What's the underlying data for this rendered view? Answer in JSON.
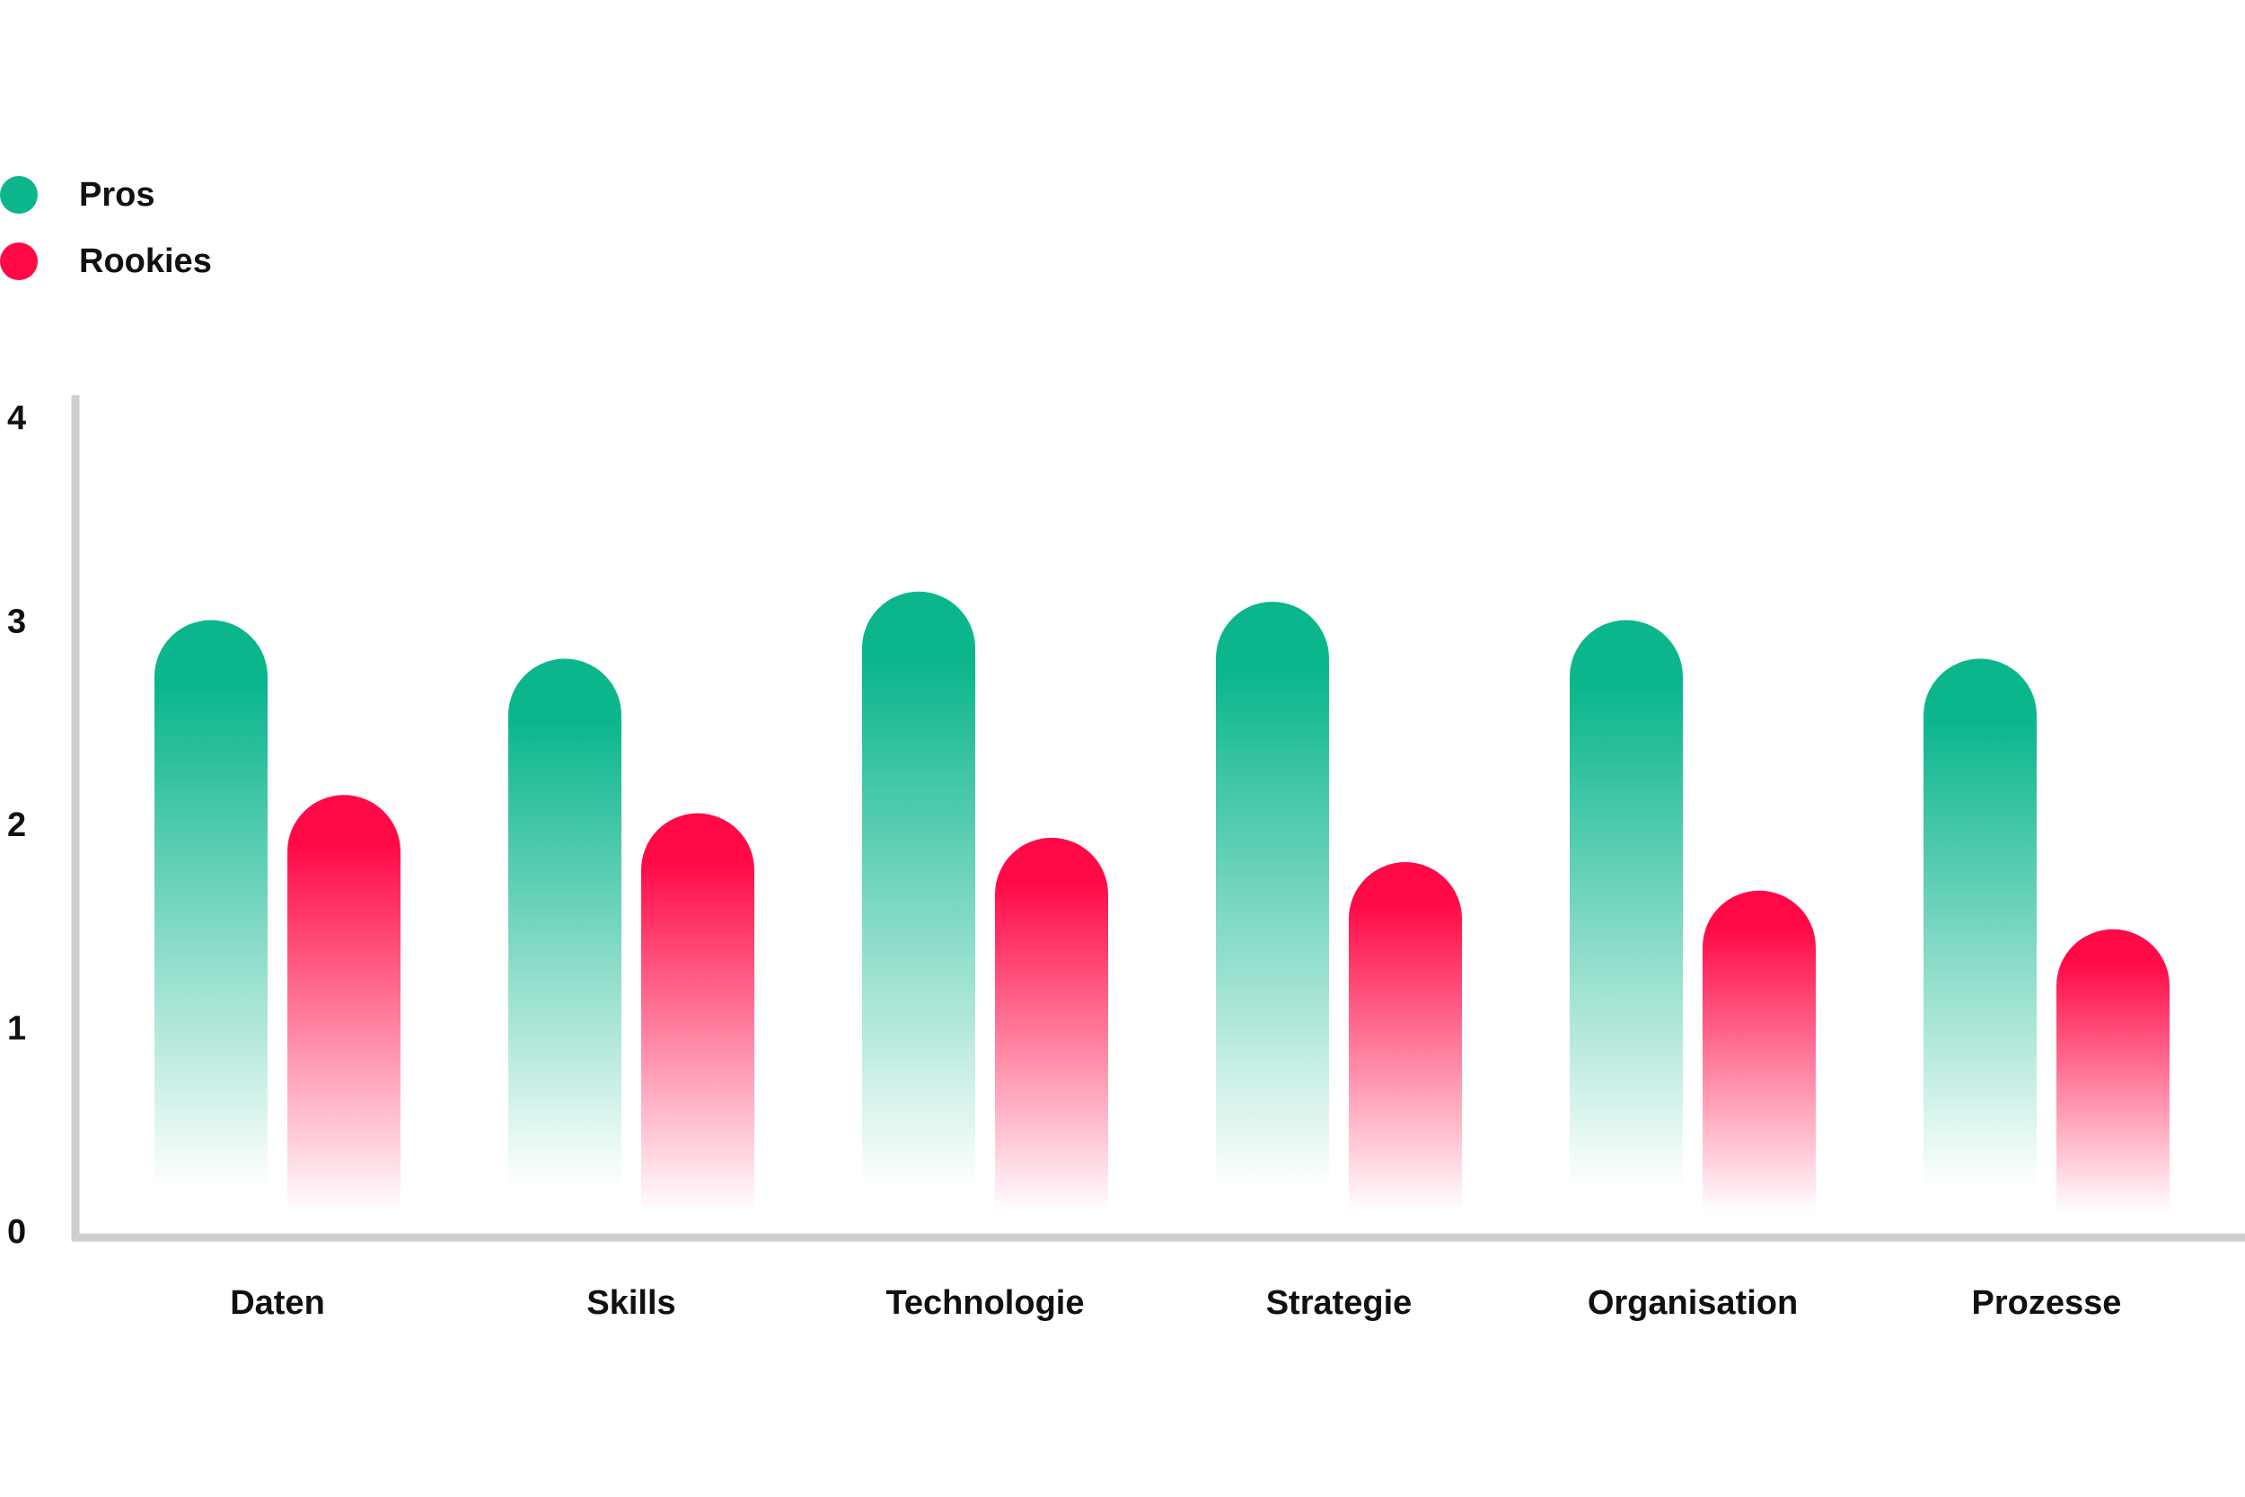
{
  "chart_data": {
    "type": "bar",
    "categories": [
      "Daten",
      "Skills",
      "Technologie",
      "Strategie",
      "Organisation",
      "Prozesse"
    ],
    "series": [
      {
        "name": "Pros",
        "color": "#0bb68d",
        "values": [
          3.0,
          2.81,
          3.14,
          3.09,
          3.0,
          2.81
        ]
      },
      {
        "name": "Rookies",
        "color": "#ff0a47",
        "values": [
          2.14,
          2.05,
          1.93,
          1.81,
          1.67,
          1.48
        ]
      }
    ],
    "ylim": [
      0,
      4
    ],
    "yticks": [
      0,
      1,
      2,
      3,
      4
    ],
    "legend_position": "top-left",
    "grid": false
  }
}
